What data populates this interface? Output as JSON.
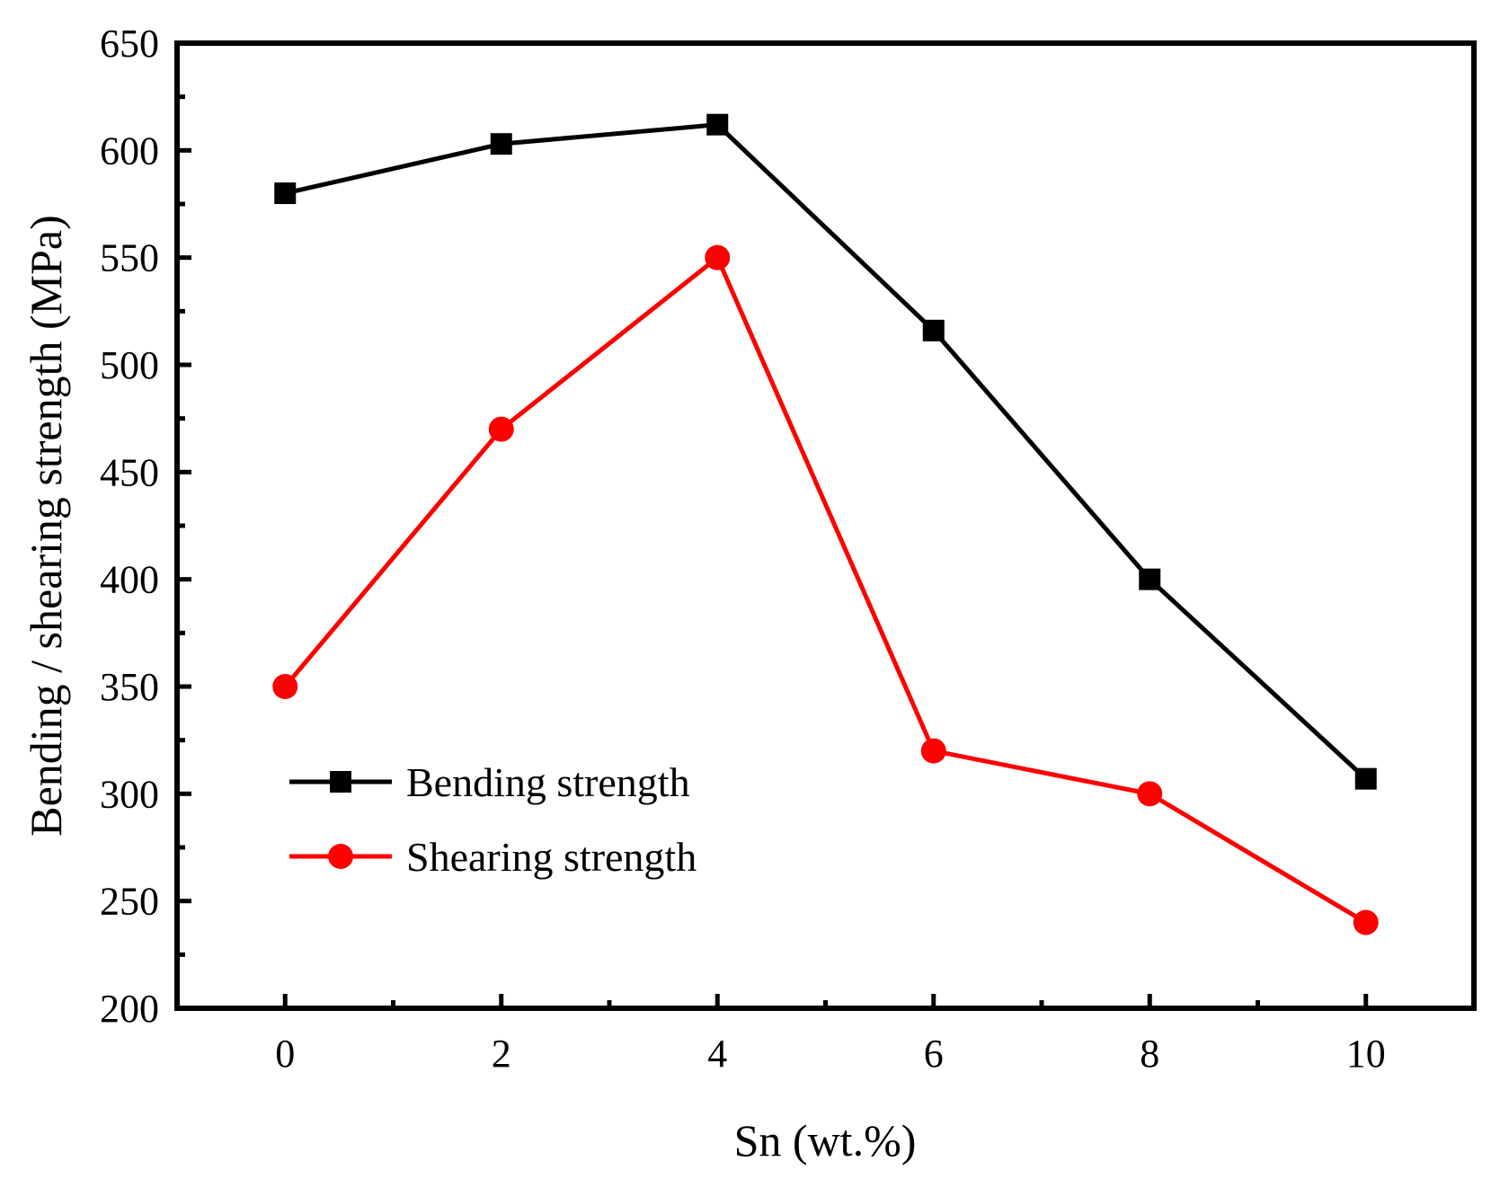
{
  "chart_data": {
    "type": "line",
    "title": "",
    "xlabel": "Sn (wt.%)",
    "ylabel": "Bending / shearing strength (MPa)",
    "xlim": [
      -1,
      11
    ],
    "ylim": [
      200,
      650
    ],
    "x_ticks": [
      0,
      2,
      4,
      6,
      8,
      10
    ],
    "x_tick_labels": [
      "0",
      "2",
      "4",
      "6",
      "8",
      "10"
    ],
    "y_ticks": [
      200,
      250,
      300,
      350,
      400,
      450,
      500,
      550,
      600,
      650
    ],
    "y_tick_labels": [
      "200",
      "250",
      "300",
      "350",
      "400",
      "450",
      "500",
      "550",
      "600",
      "650"
    ],
    "grid": false,
    "legend_position": "lower-left",
    "series": [
      {
        "name": "Bending strength",
        "color": "#000000",
        "marker": "square",
        "x": [
          0,
          2,
          4,
          6,
          8,
          10
        ],
        "values": [
          580,
          603,
          612,
          516,
          400,
          307
        ]
      },
      {
        "name": "Shearing strength",
        "color": "#ff0000",
        "marker": "circle",
        "x": [
          0,
          2,
          4,
          6,
          8,
          10
        ],
        "values": [
          350,
          470,
          550,
          320,
          300,
          240
        ]
      }
    ]
  }
}
